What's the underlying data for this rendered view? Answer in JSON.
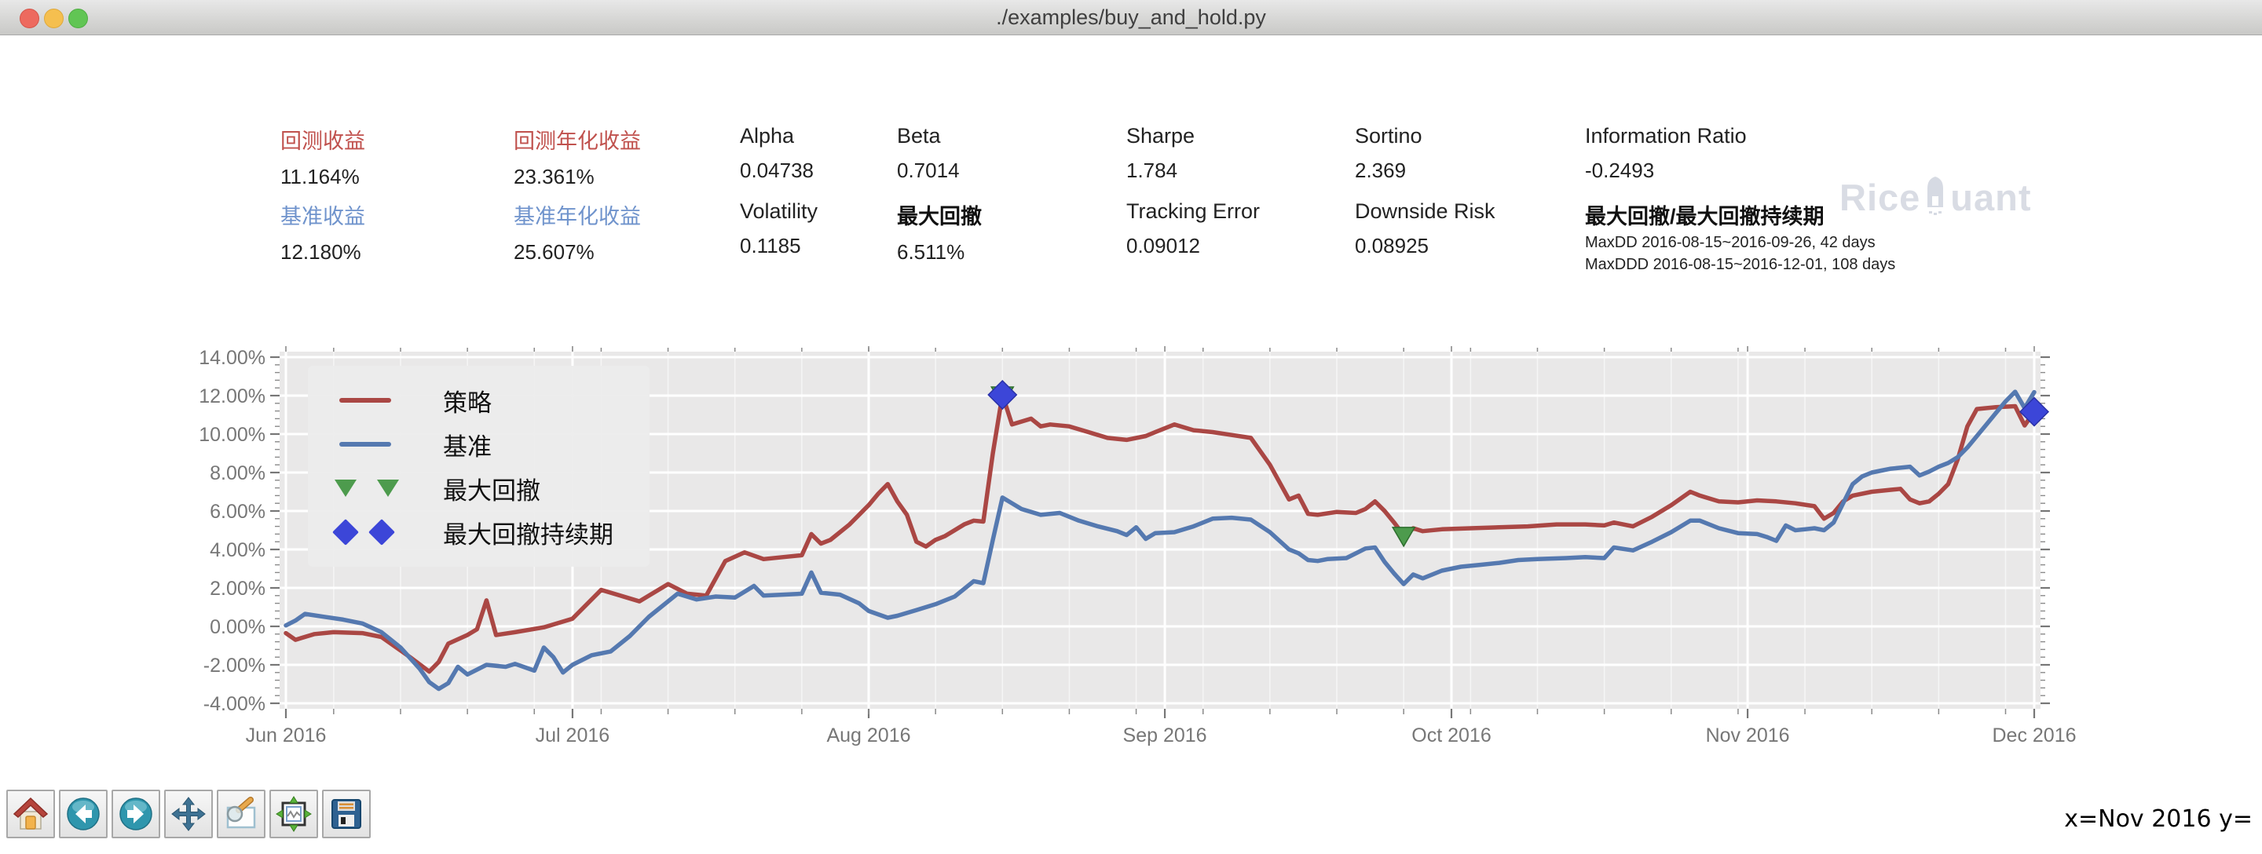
{
  "window": {
    "title": "./examples/buy_and_hold.py"
  },
  "stats": {
    "cells": [
      {
        "label": "回测收益",
        "value": "11.164%"
      },
      {
        "label": "回测年化收益",
        "value": "23.361%"
      },
      {
        "label": "Alpha",
        "value": "0.04738"
      },
      {
        "label": "Beta",
        "value": "0.7014"
      },
      {
        "label": "Sharpe",
        "value": "1.784"
      },
      {
        "label": "Sortino",
        "value": "2.369"
      },
      {
        "label": "Information Ratio",
        "value": "-0.2493"
      },
      {
        "label": "基准收益",
        "value": "12.180%"
      },
      {
        "label": "基准年化收益",
        "value": "25.607%"
      },
      {
        "label": "Volatility",
        "value": "0.1185"
      },
      {
        "label": "最大回撤",
        "value": "6.511%"
      },
      {
        "label": "Tracking Error",
        "value": "0.09012"
      },
      {
        "label": "Downside Risk",
        "value": "0.08925"
      },
      {
        "label": "最大回撤/最大回撤持续期",
        "lines": [
          "MaxDD  2016-08-15~2016-09-26, 42 days",
          "MaxDDD 2016-08-15~2016-12-01, 108 days"
        ]
      }
    ]
  },
  "watermark": {
    "left": "Rice",
    "right": "uant"
  },
  "chart_data": {
    "type": "line",
    "title": "",
    "xlabel": "",
    "ylabel": "",
    "x_axis": {
      "unit": "days since 2016-06-01",
      "range": [
        0,
        183
      ],
      "tick_days": [
        0,
        30,
        61,
        92,
        122,
        153,
        183
      ],
      "tick_labels": [
        "Jun 2016",
        "Jul 2016",
        "Aug 2016",
        "Sep 2016",
        "Oct 2016",
        "Nov 2016",
        "Dec 2016"
      ],
      "minor_tick_step_days": 7
    },
    "y_axis": {
      "range": [
        -4,
        14
      ],
      "tick_values": [
        14,
        12,
        10,
        8,
        6,
        4,
        2,
        0,
        -2,
        -4
      ],
      "tick_labels": [
        "14.00%",
        "12.00%",
        "10.00%",
        "8.00%",
        "6.00%",
        "4.00%",
        "2.00%",
        "0.00%",
        "-2.00%",
        "-4.00%"
      ],
      "minor_tick_step": 0.4
    },
    "grid": true,
    "plot_bg": "#e9e8e8",
    "grid_color": "#ffffff",
    "tick_color": "#8a8a8a",
    "tick_label_color": "#777777",
    "series": [
      {
        "name": "策略",
        "color": "#aa4744",
        "final_value_pct": 11.164,
        "points": [
          [
            0,
            -0.35
          ],
          [
            1,
            -0.7
          ],
          [
            3,
            -0.4
          ],
          [
            5,
            -0.3
          ],
          [
            8,
            -0.35
          ],
          [
            10,
            -0.55
          ],
          [
            13,
            -1.6
          ],
          [
            15,
            -2.35
          ],
          [
            16,
            -1.85
          ],
          [
            17,
            -0.9
          ],
          [
            19,
            -0.45
          ],
          [
            20,
            -0.15
          ],
          [
            21,
            1.35
          ],
          [
            22,
            -0.45
          ],
          [
            24,
            -0.3
          ],
          [
            27,
            -0.05
          ],
          [
            30,
            0.4
          ],
          [
            33,
            1.9
          ],
          [
            35,
            1.6
          ],
          [
            37,
            1.3
          ],
          [
            40,
            2.2
          ],
          [
            42,
            1.7
          ],
          [
            44,
            1.6
          ],
          [
            46,
            3.4
          ],
          [
            48,
            3.85
          ],
          [
            50,
            3.5
          ],
          [
            52,
            3.6
          ],
          [
            54,
            3.7
          ],
          [
            55,
            4.8
          ],
          [
            56,
            4.3
          ],
          [
            57,
            4.5
          ],
          [
            59,
            5.3
          ],
          [
            61,
            6.3
          ],
          [
            62,
            6.9
          ],
          [
            63,
            7.4
          ],
          [
            64,
            6.5
          ],
          [
            65,
            5.8
          ],
          [
            66,
            4.4
          ],
          [
            67,
            4.15
          ],
          [
            68,
            4.5
          ],
          [
            69,
            4.7
          ],
          [
            70,
            5.0
          ],
          [
            71,
            5.3
          ],
          [
            72,
            5.5
          ],
          [
            73,
            5.45
          ],
          [
            74,
            9.0
          ],
          [
            75,
            12.04
          ],
          [
            76,
            10.5
          ],
          [
            78,
            10.8
          ],
          [
            79,
            10.4
          ],
          [
            80,
            10.5
          ],
          [
            82,
            10.4
          ],
          [
            84,
            10.1
          ],
          [
            86,
            9.8
          ],
          [
            88,
            9.7
          ],
          [
            90,
            9.9
          ],
          [
            91,
            10.1
          ],
          [
            93,
            10.5
          ],
          [
            95,
            10.2
          ],
          [
            97,
            10.1
          ],
          [
            99,
            9.95
          ],
          [
            101,
            9.8
          ],
          [
            103,
            8.4
          ],
          [
            105,
            6.6
          ],
          [
            106,
            6.8
          ],
          [
            107,
            5.85
          ],
          [
            108,
            5.8
          ],
          [
            110,
            5.95
          ],
          [
            112,
            5.9
          ],
          [
            113,
            6.1
          ],
          [
            114,
            6.5
          ],
          [
            115,
            6.0
          ],
          [
            116,
            5.4
          ],
          [
            117,
            4.74
          ],
          [
            118,
            5.1
          ],
          [
            119,
            4.95
          ],
          [
            121,
            5.05
          ],
          [
            124,
            5.1
          ],
          [
            127,
            5.15
          ],
          [
            130,
            5.2
          ],
          [
            133,
            5.3
          ],
          [
            136,
            5.3
          ],
          [
            138,
            5.25
          ],
          [
            139,
            5.4
          ],
          [
            141,
            5.2
          ],
          [
            143,
            5.7
          ],
          [
            145,
            6.3
          ],
          [
            147,
            7.0
          ],
          [
            148,
            6.8
          ],
          [
            150,
            6.5
          ],
          [
            152,
            6.45
          ],
          [
            154,
            6.55
          ],
          [
            156,
            6.5
          ],
          [
            158,
            6.4
          ],
          [
            160,
            6.25
          ],
          [
            161,
            5.6
          ],
          [
            162,
            5.9
          ],
          [
            163,
            6.5
          ],
          [
            164,
            6.8
          ],
          [
            166,
            7.0
          ],
          [
            168,
            7.1
          ],
          [
            169,
            7.15
          ],
          [
            170,
            6.6
          ],
          [
            171,
            6.4
          ],
          [
            172,
            6.5
          ],
          [
            173,
            6.9
          ],
          [
            174,
            7.4
          ],
          [
            175,
            8.7
          ],
          [
            176,
            10.4
          ],
          [
            177,
            11.3
          ],
          [
            179,
            11.4
          ],
          [
            181,
            11.45
          ],
          [
            182,
            10.45
          ],
          [
            183,
            11.16
          ]
        ]
      },
      {
        "name": "基准",
        "color": "#5579b0",
        "final_value_pct": 12.18,
        "points": [
          [
            0,
            0.05
          ],
          [
            1,
            0.3
          ],
          [
            2,
            0.65
          ],
          [
            4,
            0.5
          ],
          [
            6,
            0.35
          ],
          [
            8,
            0.15
          ],
          [
            10,
            -0.3
          ],
          [
            12,
            -1.1
          ],
          [
            14,
            -2.2
          ],
          [
            15,
            -2.9
          ],
          [
            16,
            -3.25
          ],
          [
            17,
            -2.95
          ],
          [
            18,
            -2.1
          ],
          [
            19,
            -2.5
          ],
          [
            21,
            -2.0
          ],
          [
            23,
            -2.1
          ],
          [
            24,
            -1.95
          ],
          [
            26,
            -2.3
          ],
          [
            27,
            -1.1
          ],
          [
            28,
            -1.6
          ],
          [
            29,
            -2.4
          ],
          [
            30,
            -2.0
          ],
          [
            32,
            -1.5
          ],
          [
            34,
            -1.3
          ],
          [
            36,
            -0.5
          ],
          [
            38,
            0.5
          ],
          [
            40,
            1.3
          ],
          [
            41,
            1.7
          ],
          [
            43,
            1.4
          ],
          [
            45,
            1.55
          ],
          [
            47,
            1.5
          ],
          [
            49,
            2.1
          ],
          [
            50,
            1.6
          ],
          [
            52,
            1.65
          ],
          [
            54,
            1.7
          ],
          [
            55,
            2.8
          ],
          [
            56,
            1.75
          ],
          [
            58,
            1.65
          ],
          [
            60,
            1.2
          ],
          [
            61,
            0.8
          ],
          [
            63,
            0.45
          ],
          [
            64,
            0.55
          ],
          [
            66,
            0.85
          ],
          [
            68,
            1.15
          ],
          [
            70,
            1.55
          ],
          [
            71,
            1.95
          ],
          [
            72,
            2.35
          ],
          [
            73,
            2.25
          ],
          [
            74,
            4.5
          ],
          [
            75,
            6.7
          ],
          [
            76,
            6.4
          ],
          [
            77,
            6.1
          ],
          [
            79,
            5.8
          ],
          [
            81,
            5.9
          ],
          [
            83,
            5.5
          ],
          [
            85,
            5.2
          ],
          [
            87,
            4.95
          ],
          [
            88,
            4.75
          ],
          [
            89,
            5.15
          ],
          [
            90,
            4.55
          ],
          [
            91,
            4.85
          ],
          [
            93,
            4.9
          ],
          [
            95,
            5.2
          ],
          [
            97,
            5.6
          ],
          [
            99,
            5.65
          ],
          [
            101,
            5.55
          ],
          [
            103,
            4.9
          ],
          [
            105,
            4.0
          ],
          [
            106,
            3.8
          ],
          [
            107,
            3.45
          ],
          [
            108,
            3.4
          ],
          [
            109,
            3.5
          ],
          [
            111,
            3.55
          ],
          [
            113,
            4.05
          ],
          [
            114,
            4.1
          ],
          [
            115,
            3.35
          ],
          [
            116,
            2.75
          ],
          [
            117,
            2.2
          ],
          [
            118,
            2.7
          ],
          [
            119,
            2.5
          ],
          [
            121,
            2.9
          ],
          [
            123,
            3.1
          ],
          [
            125,
            3.2
          ],
          [
            127,
            3.3
          ],
          [
            129,
            3.45
          ],
          [
            131,
            3.5
          ],
          [
            134,
            3.55
          ],
          [
            136,
            3.6
          ],
          [
            138,
            3.55
          ],
          [
            139,
            4.1
          ],
          [
            141,
            3.95
          ],
          [
            143,
            4.4
          ],
          [
            145,
            4.9
          ],
          [
            147,
            5.5
          ],
          [
            148,
            5.5
          ],
          [
            150,
            5.1
          ],
          [
            152,
            4.85
          ],
          [
            154,
            4.8
          ],
          [
            155,
            4.65
          ],
          [
            156,
            4.45
          ],
          [
            157,
            5.25
          ],
          [
            158,
            5.0
          ],
          [
            159,
            5.05
          ],
          [
            160,
            5.1
          ],
          [
            161,
            5.0
          ],
          [
            162,
            5.4
          ],
          [
            163,
            6.4
          ],
          [
            164,
            7.4
          ],
          [
            165,
            7.8
          ],
          [
            166,
            8.0
          ],
          [
            167,
            8.1
          ],
          [
            168,
            8.2
          ],
          [
            169,
            8.25
          ],
          [
            170,
            8.3
          ],
          [
            171,
            7.85
          ],
          [
            172,
            8.05
          ],
          [
            173,
            8.3
          ],
          [
            174,
            8.5
          ],
          [
            175,
            8.8
          ],
          [
            176,
            9.3
          ],
          [
            177,
            9.9
          ],
          [
            178,
            10.5
          ],
          [
            179,
            11.1
          ],
          [
            180,
            11.7
          ],
          [
            181,
            12.2
          ],
          [
            182,
            11.35
          ],
          [
            183,
            12.18
          ]
        ]
      }
    ],
    "markers": [
      {
        "name": "最大回撤",
        "shape": "triangle-down",
        "color": "#4d9b4d",
        "edge": "#2d6e2d",
        "points": [
          [
            75,
            12.04
          ],
          [
            117,
            4.74
          ]
        ]
      },
      {
        "name": "最大回撤持续期",
        "shape": "diamond",
        "color": "#3c46d8",
        "edge": "#2a31a8",
        "points": [
          [
            75,
            12.04
          ],
          [
            183,
            11.16
          ]
        ]
      }
    ],
    "legend": {
      "position": "upper-left",
      "entries": [
        {
          "label": "策略"
        },
        {
          "label": "基准"
        },
        {
          "label": "最大回撤"
        },
        {
          "label": "最大回撤持续期"
        }
      ]
    }
  },
  "toolbar": {
    "buttons": [
      {
        "name": "home"
      },
      {
        "name": "back"
      },
      {
        "name": "forward"
      },
      {
        "name": "pan"
      },
      {
        "name": "zoom-to-rect"
      },
      {
        "name": "configure-subplots"
      },
      {
        "name": "save"
      }
    ]
  },
  "statusbar": {
    "cursor_readout": "x=Nov 2016 y="
  }
}
